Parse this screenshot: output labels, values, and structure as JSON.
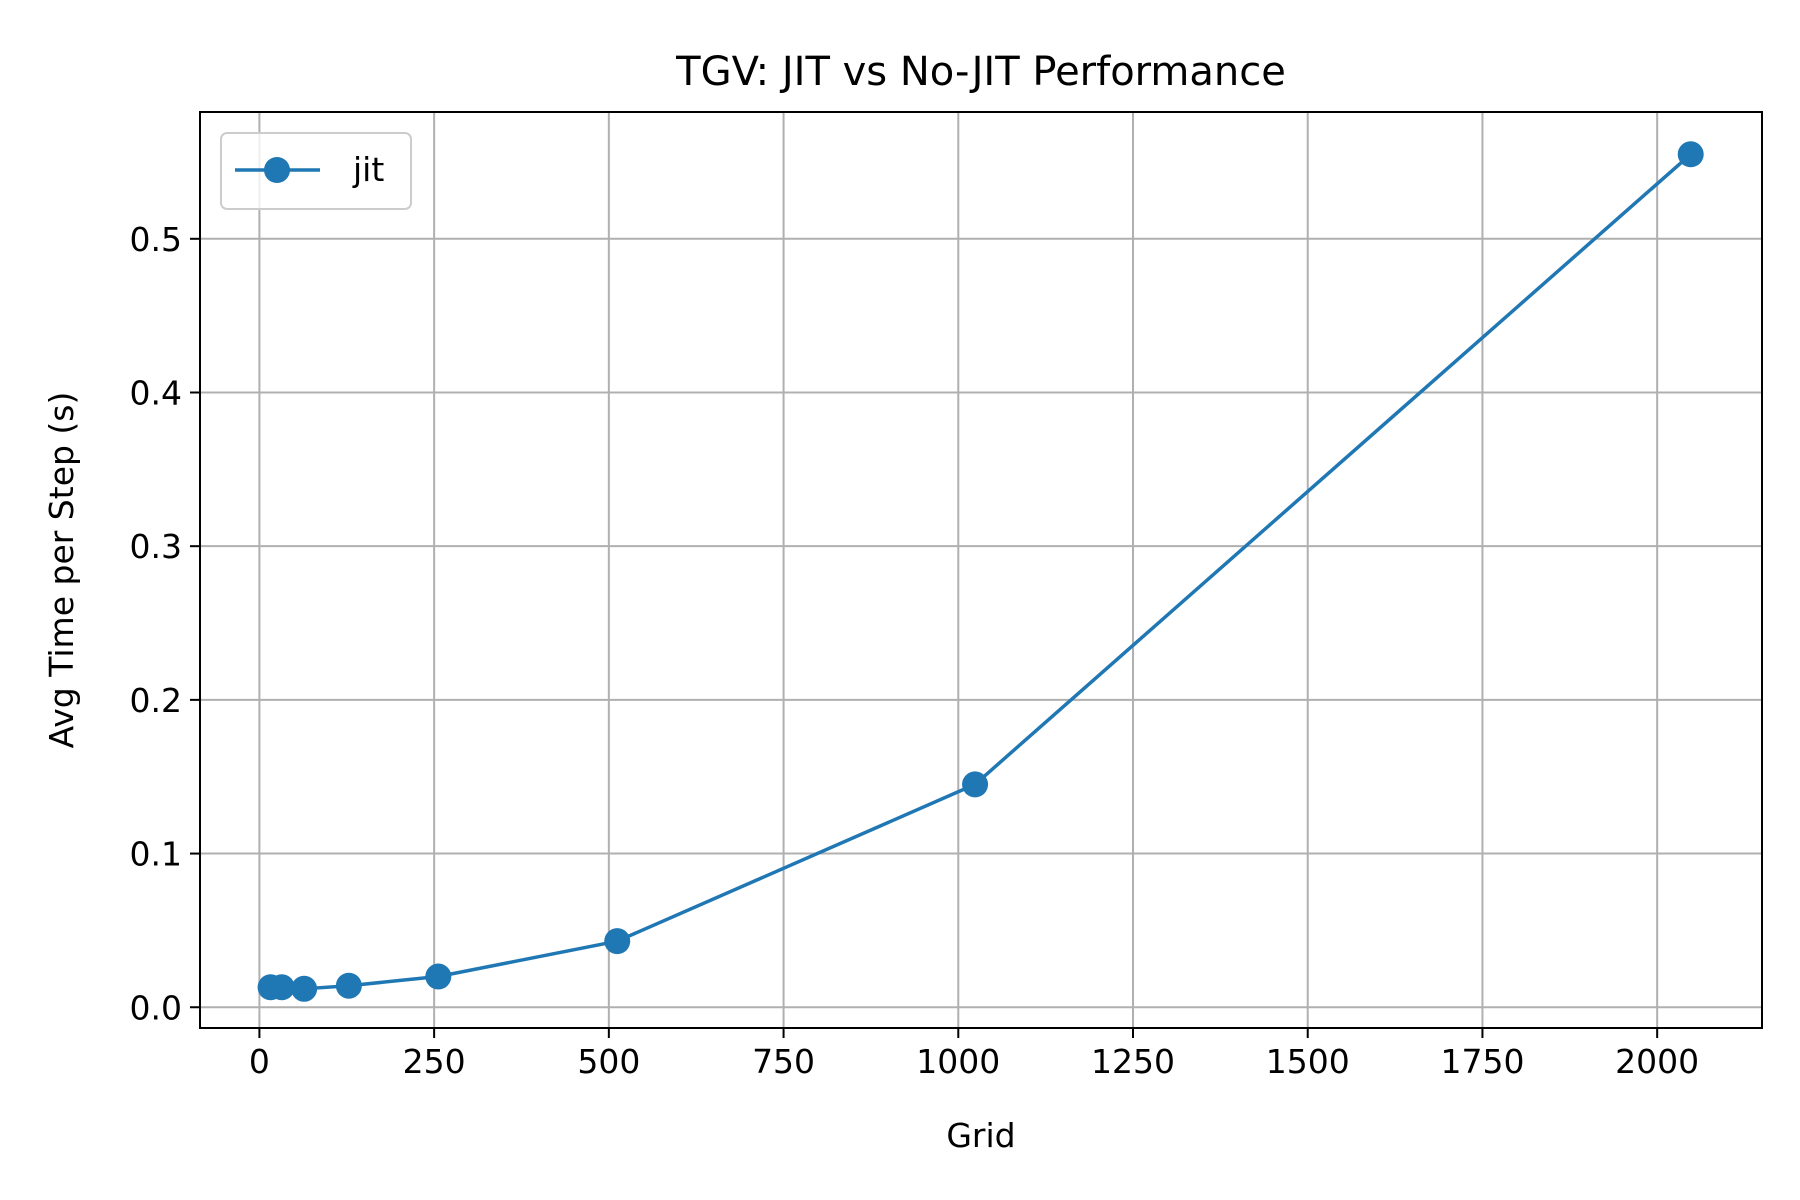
{
  "chart_data": {
    "type": "line",
    "title": "TGV: JIT vs No-JIT Performance",
    "xlabel": "Grid",
    "ylabel": "Avg Time per Step (s)",
    "xlim": [
      -85,
      2150
    ],
    "ylim": [
      -0.0135,
      0.5825
    ],
    "xticks": [
      0,
      250,
      500,
      750,
      1000,
      1250,
      1500,
      1750,
      2000
    ],
    "yticks": [
      0.0,
      0.1,
      0.2,
      0.3,
      0.4,
      0.5
    ],
    "xtick_labels": [
      "0",
      "250",
      "500",
      "750",
      "1000",
      "1250",
      "1500",
      "1750",
      "2000"
    ],
    "ytick_labels": [
      "0.0",
      "0.1",
      "0.2",
      "0.3",
      "0.4",
      "0.5"
    ],
    "grid": true,
    "legend_position": "upper-left",
    "series": [
      {
        "name": "jit",
        "color": "#1f77b4",
        "marker": "circle",
        "x": [
          16,
          32,
          64,
          128,
          256,
          512,
          1024,
          2048
        ],
        "y": [
          0.013,
          0.013,
          0.012,
          0.014,
          0.02,
          0.043,
          0.145,
          0.555
        ]
      }
    ]
  }
}
